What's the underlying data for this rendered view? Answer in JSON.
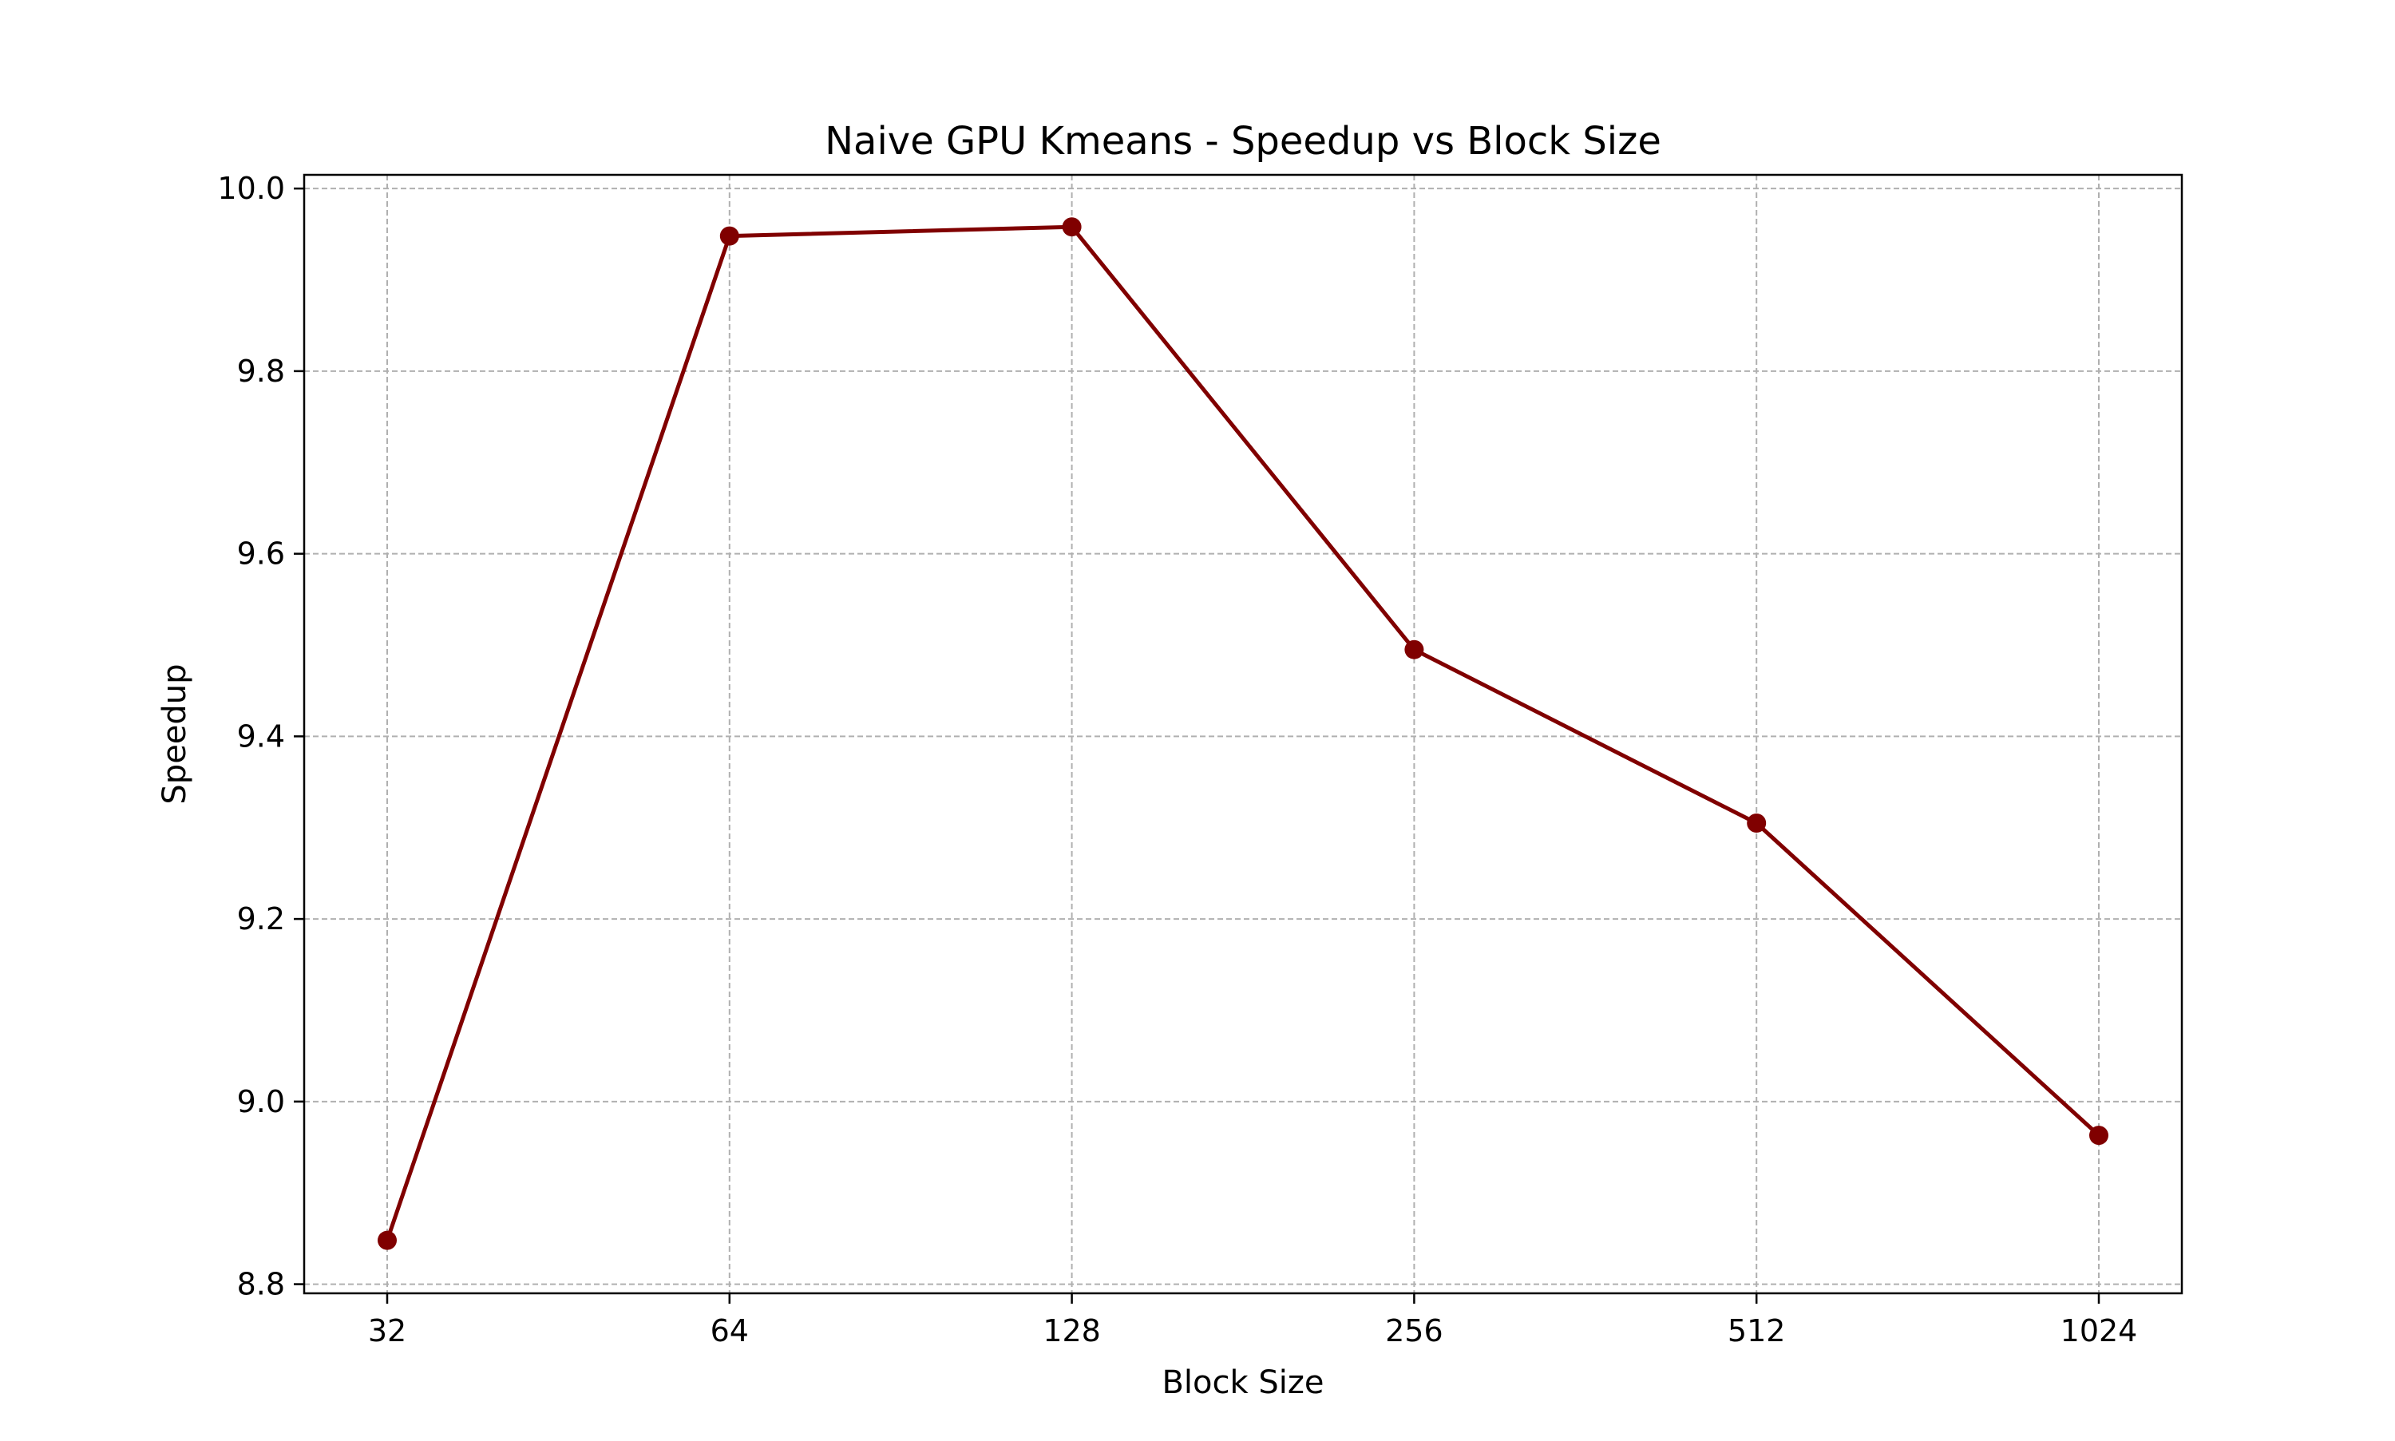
{
  "chart_data": {
    "type": "line",
    "title": "Naive GPU Kmeans - Speedup vs Block Size",
    "xlabel": "Block Size",
    "ylabel": "Speedup",
    "categories": [
      "32",
      "64",
      "128",
      "256",
      "512",
      "1024"
    ],
    "series": [
      {
        "values": [
          8.848,
          9.948,
          9.958,
          9.495,
          9.305,
          8.963
        ],
        "color": "#800000",
        "marker": "circle"
      }
    ],
    "ylim": [
      8.79,
      10.015
    ],
    "yticks": [
      8.8,
      9.0,
      9.2,
      9.4,
      9.6,
      9.8,
      10.0
    ],
    "ytick_labels": [
      "8.8",
      "9.0",
      "9.2",
      "9.4",
      "9.6",
      "9.8",
      "10.0"
    ],
    "grid": true,
    "legend": "none"
  }
}
